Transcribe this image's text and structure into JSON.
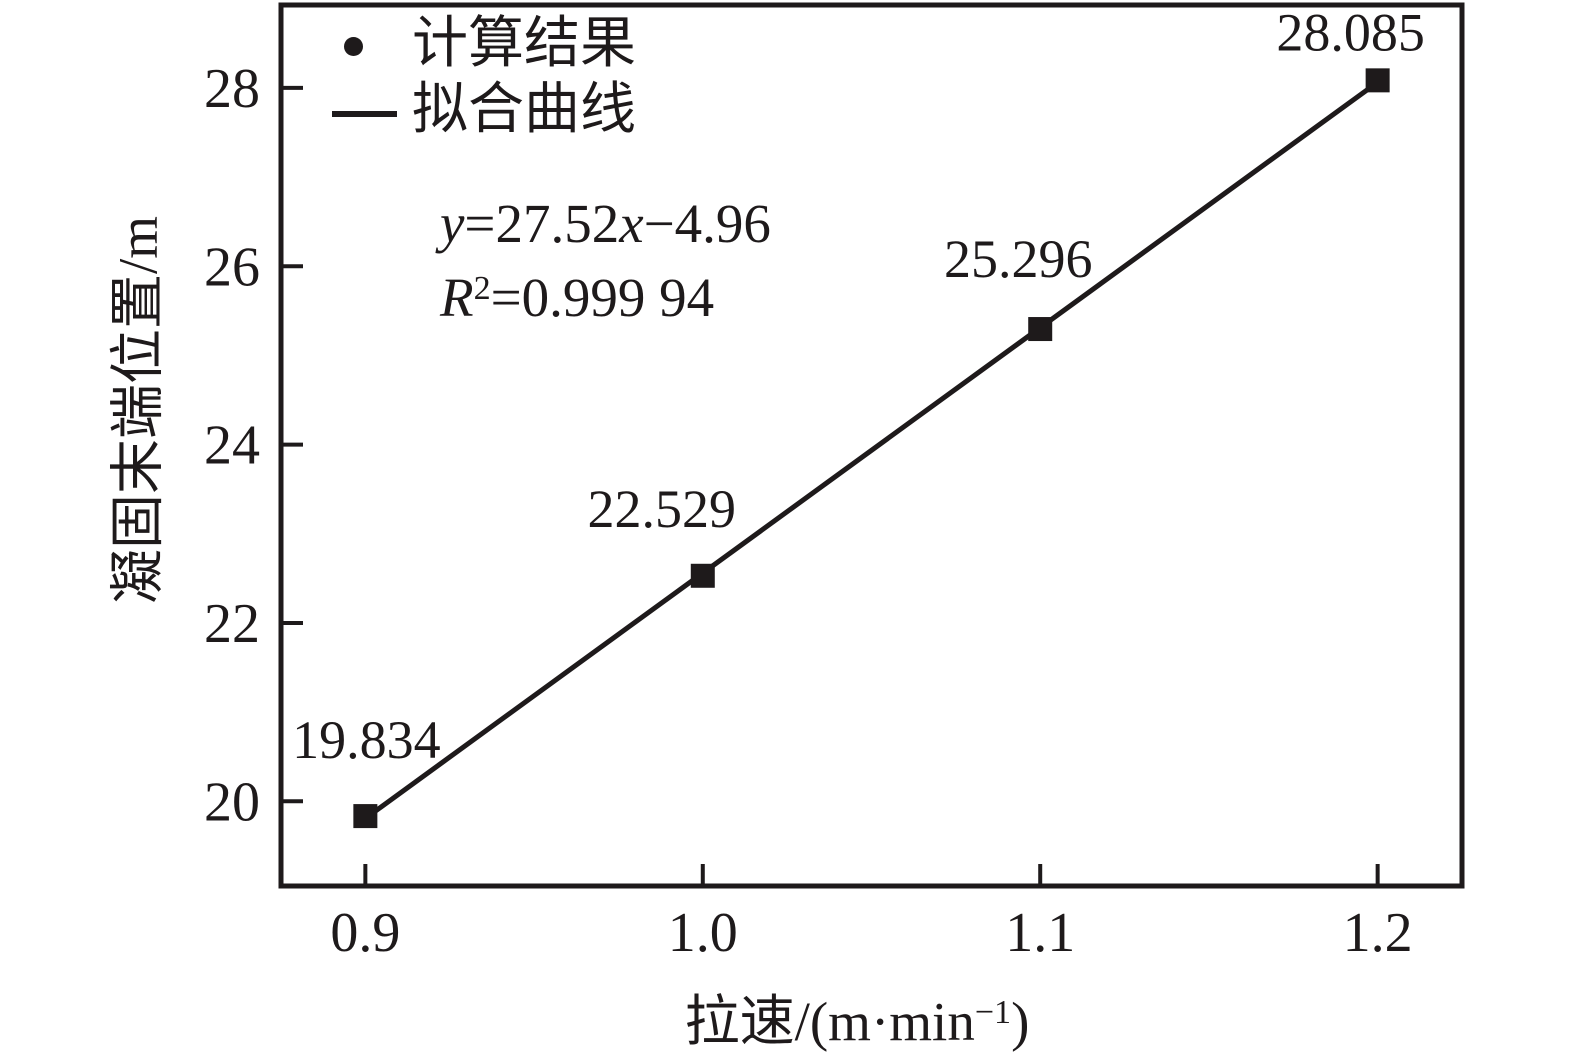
{
  "chart_data": {
    "type": "scatter",
    "title": "",
    "xlabel": "拉速/(m·min−1)",
    "xlabel_parts": [
      {
        "text": "拉速/(m·min"
      },
      {
        "text": "−1",
        "sup": true
      },
      {
        "text": ")"
      }
    ],
    "ylabel": "凝固末端位置/m",
    "x": [
      0.9,
      1.0,
      1.1,
      1.2
    ],
    "series": [
      {
        "name": "计算结果",
        "marker": "filled-square",
        "values": [
          19.834,
          22.529,
          25.296,
          28.085
        ],
        "point_labels": [
          "19.834",
          "22.529",
          "25.296",
          "28.085"
        ]
      }
    ],
    "fit": {
      "name": "拟合曲线",
      "slope": 27.52,
      "intercept": -4.96,
      "equation": "y=27.52x−4.96",
      "equation_parts": [
        {
          "text": "y",
          "italic": true
        },
        {
          "text": "=27.52"
        },
        {
          "text": "x",
          "italic": true
        },
        {
          "text": "−4.96"
        }
      ],
      "r_squared": "R2=0.999 94",
      "r2_parts": [
        {
          "text": "R",
          "italic": true
        },
        {
          "text": "2",
          "sup": true
        },
        {
          "text": "=0.999 94"
        }
      ]
    },
    "legend": [
      {
        "label": "计算结果",
        "marker": "dot"
      },
      {
        "label": "拟合曲线",
        "marker": "line"
      }
    ],
    "legend_position": "top-left-inside",
    "x_ticks": [
      0.9,
      1.0,
      1.1,
      1.2
    ],
    "x_tick_labels": [
      "0.9",
      "1.0",
      "1.1",
      "1.2"
    ],
    "y_ticks": [
      20,
      22,
      24,
      26,
      28
    ],
    "y_tick_labels": [
      "20",
      "22",
      "24",
      "26",
      "28"
    ],
    "xlim": [
      0.875,
      1.225
    ],
    "ylim": [
      19.05,
      28.93
    ],
    "grid": false,
    "colors": {
      "ink": "#1e1a1b",
      "background": "#ffffff"
    }
  }
}
